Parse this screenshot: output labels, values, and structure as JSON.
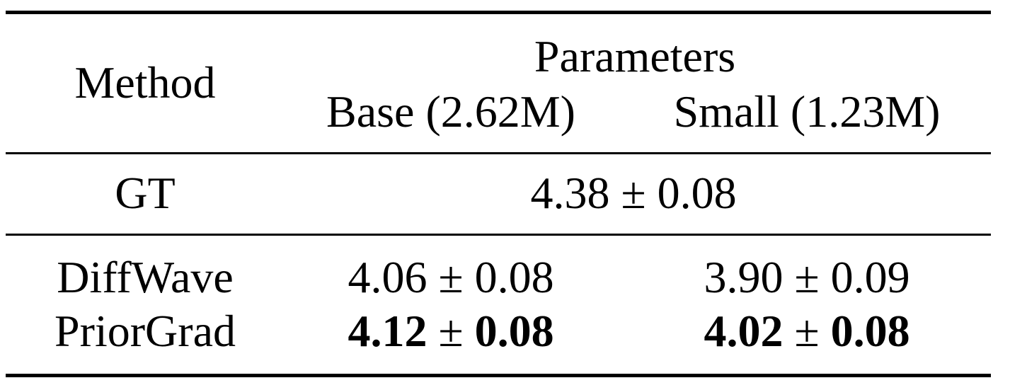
{
  "header": {
    "method": "Method",
    "group": "Parameters",
    "columns": [
      "Base (2.62M)",
      "Small (1.23M)"
    ]
  },
  "rows": [
    {
      "method": "GT",
      "span": {
        "mean": "4.38",
        "pm": "±",
        "std": "0.08"
      }
    },
    {
      "method": "DiffWave",
      "cells": [
        {
          "mean": "4.06",
          "pm": "±",
          "std": "0.08"
        },
        {
          "mean": "3.90",
          "pm": "±",
          "std": "0.09"
        }
      ]
    },
    {
      "method": "PriorGrad",
      "bold": true,
      "cells": [
        {
          "mean": "4.12",
          "pm": "±",
          "std": "0.08"
        },
        {
          "mean": "4.02",
          "pm": "±",
          "std": "0.08"
        }
      ]
    }
  ]
}
